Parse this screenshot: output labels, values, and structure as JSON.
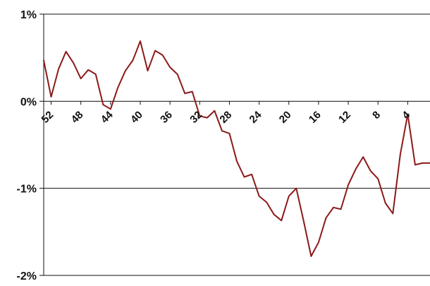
{
  "chart_data": {
    "type": "line",
    "title": "",
    "xlabel": "",
    "ylabel": "",
    "x_reversed": true,
    "xlim": [
      53,
      1
    ],
    "ylim": [
      -2,
      1
    ],
    "y_ticks": [
      1,
      0,
      -1,
      -2
    ],
    "y_tick_labels": [
      "1%",
      "0%",
      "-1%",
      "-2%"
    ],
    "x_ticks": [
      52,
      48,
      44,
      40,
      36,
      32,
      28,
      24,
      20,
      16,
      12,
      8,
      4
    ],
    "x_tick_labels": [
      "52",
      "48",
      "44",
      "40",
      "36",
      "32",
      "28",
      "24",
      "20",
      "16",
      "12",
      "8",
      "4"
    ],
    "grid": {
      "horizontal": true,
      "vertical": false
    },
    "legend": "none",
    "series": [
      {
        "color": "#8b1a1a",
        "x": [
          53,
          52,
          51,
          50,
          49,
          48,
          47,
          46,
          45,
          44,
          43,
          42,
          41,
          40,
          39,
          38,
          37,
          36,
          35,
          34,
          33,
          32,
          31,
          30,
          29,
          28,
          27,
          26,
          25,
          24,
          23,
          22,
          21,
          20,
          19,
          18,
          17,
          16,
          15,
          14,
          13,
          12,
          11,
          10,
          9,
          8,
          7,
          6,
          5,
          4,
          3,
          2,
          1
        ],
        "y": [
          0.47,
          0.05,
          0.37,
          0.57,
          0.44,
          0.26,
          0.36,
          0.31,
          -0.04,
          -0.09,
          0.16,
          0.35,
          0.47,
          0.69,
          0.35,
          0.58,
          0.53,
          0.39,
          0.31,
          0.09,
          0.11,
          -0.17,
          -0.19,
          -0.11,
          -0.34,
          -0.37,
          -0.69,
          -0.87,
          -0.84,
          -1.09,
          -1.16,
          -1.3,
          -1.37,
          -1.09,
          -1.0,
          -1.38,
          -1.78,
          -1.62,
          -1.34,
          -1.22,
          -1.24,
          -0.96,
          -0.78,
          -0.64,
          -0.8,
          -0.89,
          -1.17,
          -1.29,
          -0.61,
          -0.15,
          -0.73,
          -0.71,
          -0.71
        ]
      }
    ]
  }
}
